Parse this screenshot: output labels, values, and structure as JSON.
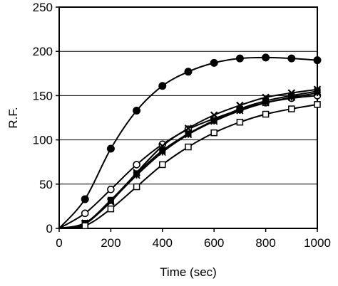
{
  "chart_data": {
    "type": "line",
    "title": "",
    "xlabel": "Time (sec)",
    "ylabel": "R.F.",
    "xlim": [
      0,
      1000
    ],
    "ylim": [
      0,
      250
    ],
    "xticks": [
      0,
      200,
      400,
      600,
      800,
      1000
    ],
    "yticks": [
      0,
      50,
      100,
      150,
      200,
      250
    ],
    "grid": "horizontal",
    "legend": "none",
    "x": [
      0,
      100,
      200,
      300,
      400,
      500,
      600,
      700,
      800,
      900,
      1000
    ],
    "series": [
      {
        "marker": "filled-circle",
        "color": "#000000",
        "values": [
          0,
          33,
          90,
          133,
          161,
          177,
          187,
          192,
          193,
          192,
          190
        ]
      },
      {
        "marker": "open-circle",
        "color": "#000000",
        "values": [
          0,
          17,
          44,
          72,
          95,
          112,
          124,
          134,
          142,
          147,
          150
        ]
      },
      {
        "marker": "x",
        "color": "#000000",
        "values": [
          0,
          6,
          30,
          63,
          93,
          113,
          128,
          139,
          148,
          153,
          157
        ]
      },
      {
        "marker": "filled-square",
        "color": "#000000",
        "values": [
          0,
          6,
          32,
          62,
          88,
          107,
          122,
          135,
          144,
          150,
          155
        ]
      },
      {
        "marker": "asterisk",
        "color": "#000000",
        "values": [
          0,
          5,
          31,
          60,
          86,
          106,
          121,
          133,
          142,
          148,
          153
        ]
      },
      {
        "marker": "open-square",
        "color": "#000000",
        "values": [
          0,
          3,
          22,
          47,
          72,
          92,
          108,
          120,
          129,
          135,
          140
        ]
      }
    ]
  }
}
